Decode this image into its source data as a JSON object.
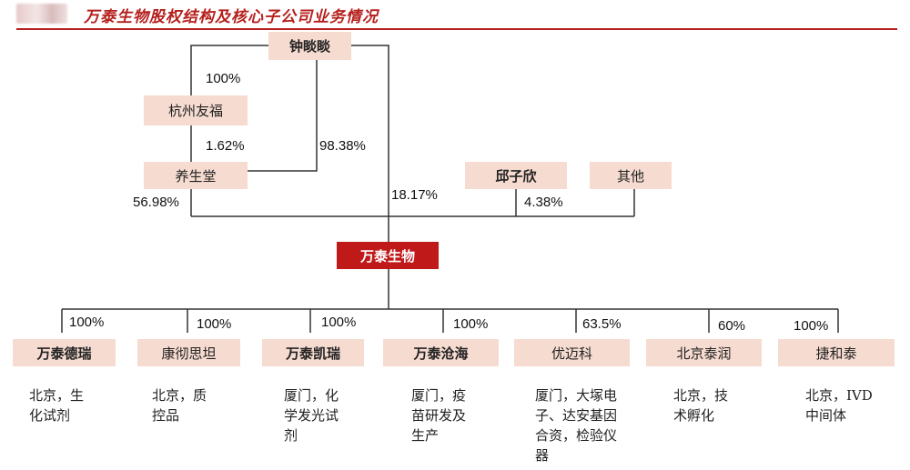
{
  "header": {
    "title": "万泰生物股权结构及核心子公司业务情况"
  },
  "shareholders": {
    "zhong": "钟睒睒",
    "hangzhou": "杭州友福",
    "yangsheng": "养生堂",
    "qiu": "邱子欣",
    "other": "其他"
  },
  "core": "万泰生物",
  "percentages": {
    "zhong_hangzhou": "100%",
    "hangzhou_yangsheng": "1.62%",
    "zhong_yangsheng": "98.38%",
    "yangsheng_core": "56.98%",
    "zhong_core": "18.17%",
    "qiu_core": "4.38%"
  },
  "subsidiaries": [
    {
      "name": "万泰德瑞",
      "pct": "100%",
      "desc": "北京，生\n化试剂"
    },
    {
      "name": "康彻思坦",
      "pct": "100%",
      "desc": "北京，质\n控品"
    },
    {
      "name": "万泰凯瑞",
      "pct": "100%",
      "desc": "厦门，化\n学发光试\n剂"
    },
    {
      "name": "万泰沧海",
      "pct": "100%",
      "desc": "厦门，疫\n苗研发及\n生产"
    },
    {
      "name": "优迈科",
      "pct": "63.5%",
      "desc": "厦门，大塚电\n子、达安基因\n合资，检验仪\n器"
    },
    {
      "name": "北京泰润",
      "pct": "60%",
      "desc": "北京，技\n术孵化"
    },
    {
      "name": "捷和泰",
      "pct": "100%",
      "desc": "北京，IVD\n中间体"
    }
  ]
}
